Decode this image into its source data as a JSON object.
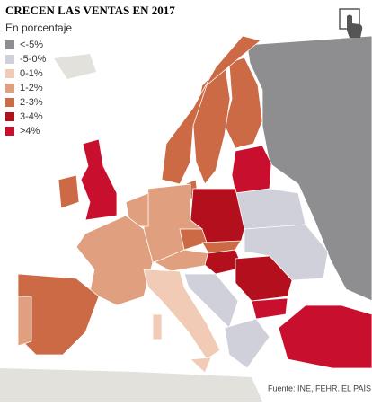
{
  "header": {
    "title": "CRECEN LAS VENTAS EN 2017",
    "subtitle": "En porcentaje"
  },
  "legend": [
    {
      "label": "<-5%",
      "color": "#8e8e91"
    },
    {
      "label": "-5-0%",
      "color": "#cfd0da"
    },
    {
      "label": "0-1%",
      "color": "#f1cbb5"
    },
    {
      "label": "1-2%",
      "color": "#e0a07f"
    },
    {
      "label": "2-3%",
      "color": "#cb6a45"
    },
    {
      "label": "3-4%",
      "color": "#b30f1c"
    },
    {
      "label": ">4%",
      "color": "#c8102e"
    }
  ],
  "footer": {
    "source": "Fuente: INE, FEHR.",
    "brand": "EL PAÍS"
  }
}
